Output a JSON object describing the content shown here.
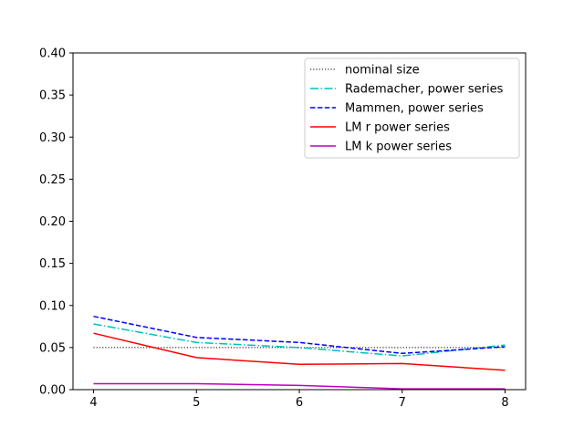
{
  "chart_data": {
    "type": "line",
    "title": "",
    "xlabel": "",
    "ylabel": "",
    "x": [
      4,
      5,
      6,
      7,
      8
    ],
    "xlim": [
      3.8,
      8.2
    ],
    "ylim": [
      0,
      0.4
    ],
    "xticks": [
      "4",
      "5",
      "6",
      "7",
      "8"
    ],
    "yticks": [
      "0.00",
      "0.05",
      "0.10",
      "0.15",
      "0.20",
      "0.25",
      "0.30",
      "0.35",
      "0.40"
    ],
    "grid": false,
    "legend_position": "top-right",
    "series": [
      {
        "name": "nominal size",
        "values": [
          0.05,
          0.05,
          0.05,
          0.05,
          0.05
        ],
        "color": "#000000",
        "style": "dotted"
      },
      {
        "name": "Rademacher, power series",
        "values": [
          0.078,
          0.056,
          0.05,
          0.04,
          0.053
        ],
        "color": "#00bfbf",
        "style": "dashdot"
      },
      {
        "name": "Mammen, power series",
        "values": [
          0.087,
          0.062,
          0.056,
          0.043,
          0.051
        ],
        "color": "#0000ff",
        "style": "dashed"
      },
      {
        "name": "LM r power series",
        "values": [
          0.067,
          0.038,
          0.03,
          0.031,
          0.023
        ],
        "color": "#ff0000",
        "style": "solid"
      },
      {
        "name": "LM k power series",
        "values": [
          0.007,
          0.007,
          0.005,
          0.001,
          0.001
        ],
        "color": "#bf00bf",
        "style": "solid"
      }
    ]
  }
}
